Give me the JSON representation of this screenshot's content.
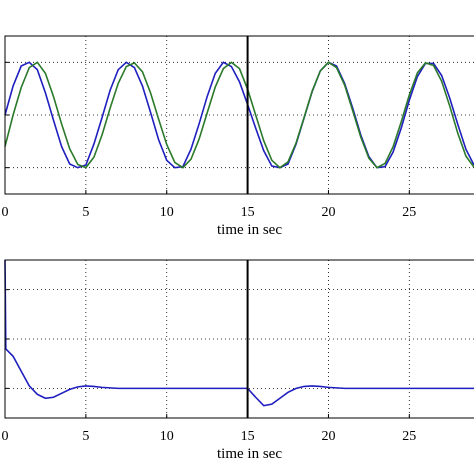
{
  "colors": {
    "blue": "#1f1fbf",
    "green": "#2a7a2a",
    "axis": "#000000"
  },
  "chart_data": [
    {
      "type": "line",
      "xlabel": "time in sec",
      "ylabel": "",
      "title": "",
      "xlim": [
        0,
        29
      ],
      "ylim": [
        -1.5,
        1.5
      ],
      "x_ticks": [
        0,
        5,
        10,
        15,
        20,
        25
      ],
      "x_tick_labels": [
        "0",
        "5",
        "10",
        "15",
        "20",
        "25"
      ],
      "grid": true,
      "vertical_markers": [
        15
      ],
      "series": [
        {
          "color": "#1f1fbf",
          "x": [
            0,
            0.5,
            1,
            1.5,
            2,
            2.5,
            3,
            3.5,
            4,
            4.5,
            5,
            5.5,
            6,
            6.5,
            7,
            7.5,
            8,
            8.5,
            9,
            9.5,
            10,
            10.5,
            11,
            11.5,
            12,
            12.5,
            13,
            13.5,
            14,
            14.5,
            15,
            15.5,
            16,
            16.5,
            17,
            17.5,
            18,
            18.5,
            19,
            19.5,
            20,
            20.5,
            21,
            21.5,
            22,
            22.5,
            23,
            23.5,
            24,
            24.5,
            25,
            25.5,
            26,
            26.5,
            27,
            27.5,
            28,
            28.5,
            29
          ],
          "y": [
            0.0,
            0.55,
            0.93,
            1.0,
            0.86,
            0.42,
            -0.1,
            -0.6,
            -0.93,
            -1.0,
            -0.95,
            -0.55,
            -0.05,
            0.47,
            0.86,
            1.0,
            0.9,
            0.55,
            0.05,
            -0.47,
            -0.86,
            -1.0,
            -0.98,
            -0.65,
            -0.17,
            0.35,
            0.79,
            1.0,
            0.92,
            0.63,
            0.2,
            -0.25,
            -0.68,
            -0.97,
            -1.0,
            -0.93,
            -0.55,
            -0.05,
            0.45,
            0.84,
            1.0,
            0.93,
            0.6,
            0.13,
            -0.38,
            -0.79,
            -1.0,
            -0.98,
            -0.7,
            -0.25,
            0.28,
            0.73,
            0.98,
            0.98,
            0.75,
            0.32,
            -0.18,
            -0.65,
            -0.95
          ]
        },
        {
          "color": "#2a7a2a",
          "x": [
            0,
            0.5,
            1,
            1.5,
            2,
            2.5,
            3,
            3.5,
            4,
            4.5,
            5,
            5.5,
            6,
            6.5,
            7,
            7.5,
            8,
            8.5,
            9,
            9.5,
            10,
            10.5,
            11,
            11.5,
            12,
            12.5,
            13,
            13.5,
            14,
            14.5,
            15,
            15.5,
            16,
            16.5,
            17,
            17.5,
            18,
            18.5,
            19,
            19.5,
            20,
            20.5,
            21,
            21.5,
            22,
            22.5,
            23,
            23.5,
            24,
            24.5,
            25,
            25.5,
            26,
            26.5,
            27,
            27.5,
            28,
            28.5,
            29
          ],
          "y": [
            -0.6,
            0.0,
            0.52,
            0.9,
            1.0,
            0.79,
            0.35,
            -0.17,
            -0.64,
            -0.94,
            -1.0,
            -0.8,
            -0.38,
            0.13,
            0.6,
            0.92,
            0.99,
            0.82,
            0.42,
            -0.08,
            -0.56,
            -0.9,
            -1.0,
            -0.84,
            -0.46,
            0.04,
            0.53,
            0.88,
            1.0,
            0.88,
            0.49,
            0.0,
            -0.49,
            -0.86,
            -1.0,
            -0.89,
            -0.53,
            -0.04,
            0.46,
            0.84,
            1.0,
            0.9,
            0.57,
            0.08,
            -0.42,
            -0.82,
            -1.0,
            -0.92,
            -0.6,
            -0.13,
            0.38,
            0.8,
            0.99,
            0.94,
            0.64,
            0.17,
            -0.35,
            -0.78,
            -0.99
          ]
        }
      ]
    },
    {
      "type": "line",
      "xlabel": "time in sec",
      "ylabel": "",
      "title": "",
      "xlim": [
        0,
        29
      ],
      "ylim": [
        -0.6,
        2.6
      ],
      "x_ticks": [
        0,
        5,
        10,
        15,
        20,
        25
      ],
      "x_tick_labels": [
        "0",
        "5",
        "10",
        "15",
        "20",
        "25"
      ],
      "grid": true,
      "vertical_markers": [
        15
      ],
      "series": [
        {
          "color": "#1f1fbf",
          "x": [
            0,
            0.05,
            0.5,
            1,
            1.5,
            2,
            2.5,
            3,
            3.5,
            4,
            4.5,
            5,
            5.5,
            6,
            7,
            8,
            9,
            10,
            11,
            12,
            13,
            14,
            14.99,
            15.0,
            15.5,
            16,
            16.5,
            17,
            17.5,
            18,
            18.5,
            19,
            19.5,
            20,
            21,
            22,
            23,
            24,
            25,
            26,
            27,
            28,
            29
          ],
          "y": [
            2.6,
            0.8,
            0.65,
            0.35,
            0.05,
            -0.12,
            -0.2,
            -0.18,
            -0.1,
            -0.02,
            0.03,
            0.05,
            0.04,
            0.02,
            0.0,
            0.0,
            0.0,
            0.0,
            0.0,
            0.0,
            0.0,
            0.0,
            0.0,
            0.0,
            -0.18,
            -0.35,
            -0.32,
            -0.2,
            -0.08,
            0.0,
            0.04,
            0.05,
            0.04,
            0.02,
            0.0,
            0.0,
            0.0,
            0.0,
            0.0,
            0.0,
            0.0,
            0.0,
            0.0
          ]
        }
      ]
    }
  ]
}
